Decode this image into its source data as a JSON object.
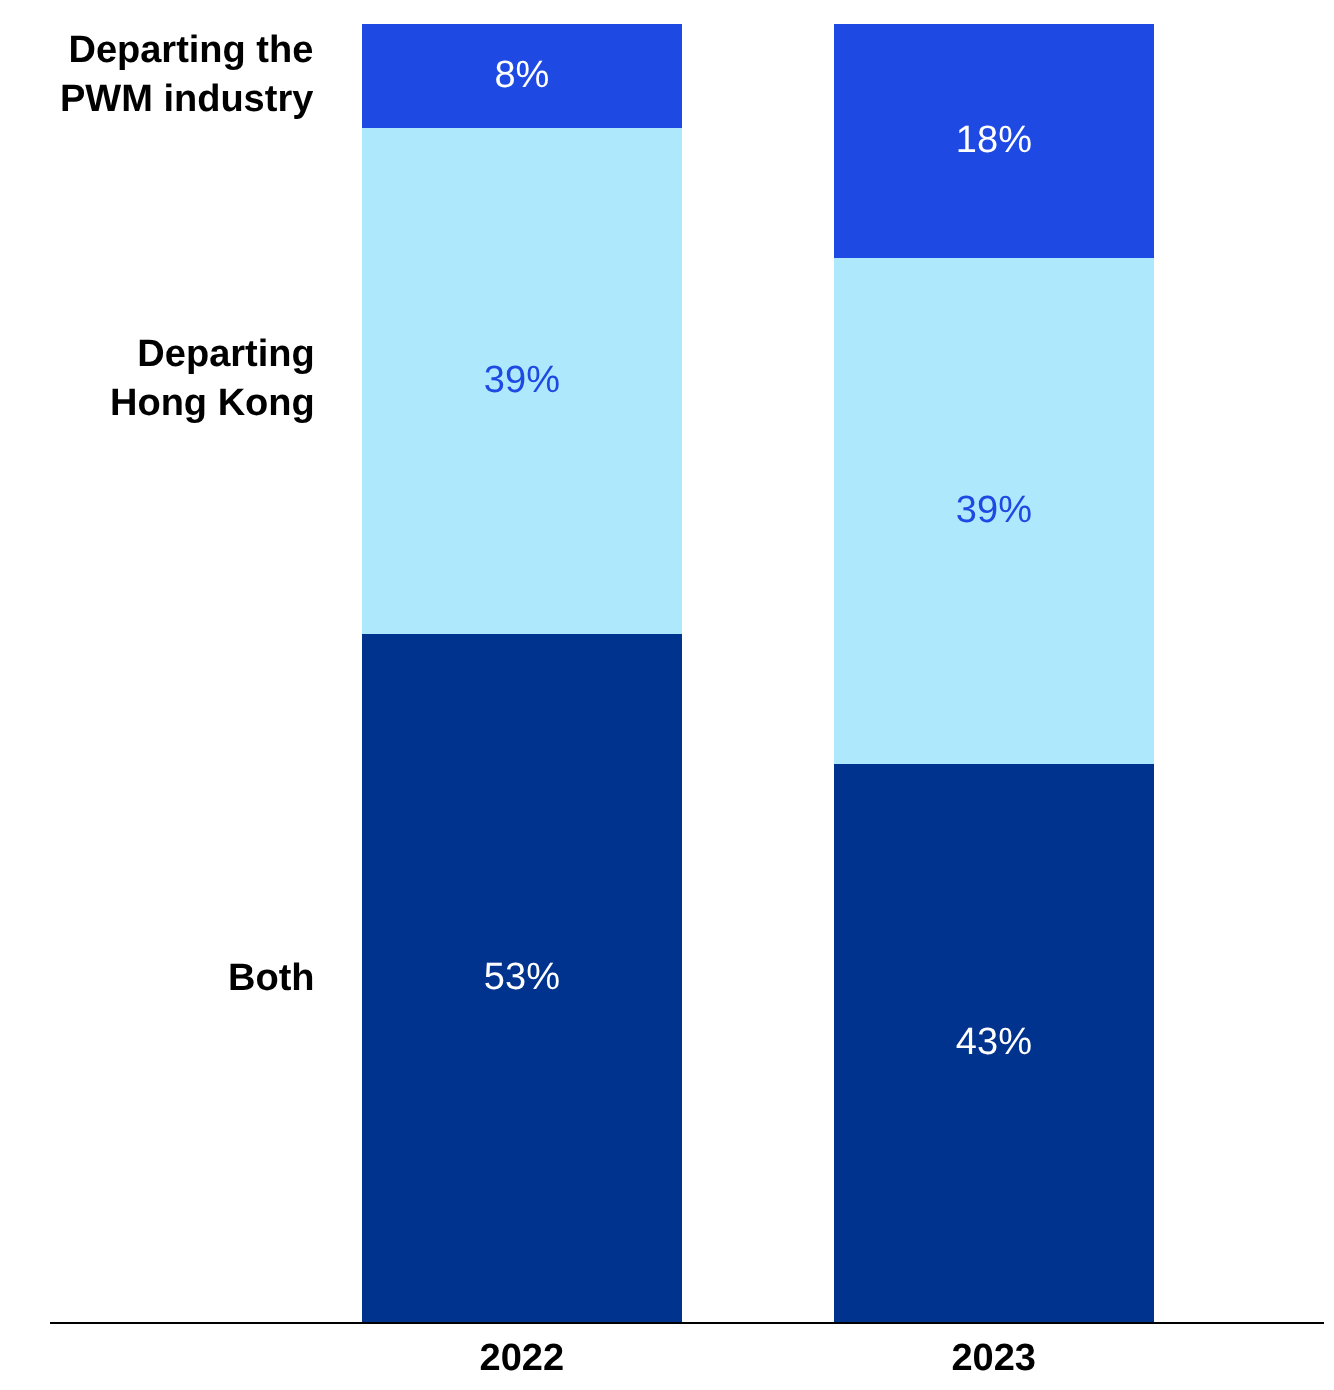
{
  "chart_data": {
    "type": "bar",
    "stacked": true,
    "categories": [
      "2022",
      "2023"
    ],
    "series": [
      {
        "name": "Both",
        "color": "#00338d",
        "values": [
          53,
          43
        ],
        "value_labels": [
          "53%",
          "43%"
        ]
      },
      {
        "name": "Departing\nHong Kong",
        "color": "#ade8fc",
        "values": [
          39,
          39
        ],
        "value_labels": [
          "39%",
          "39%"
        ]
      },
      {
        "name": "Departing the\nPWM industry",
        "color": "#1e49e2",
        "values": [
          8,
          18
        ],
        "value_labels": [
          "8%",
          "18%"
        ]
      }
    ],
    "legend": false
  }
}
